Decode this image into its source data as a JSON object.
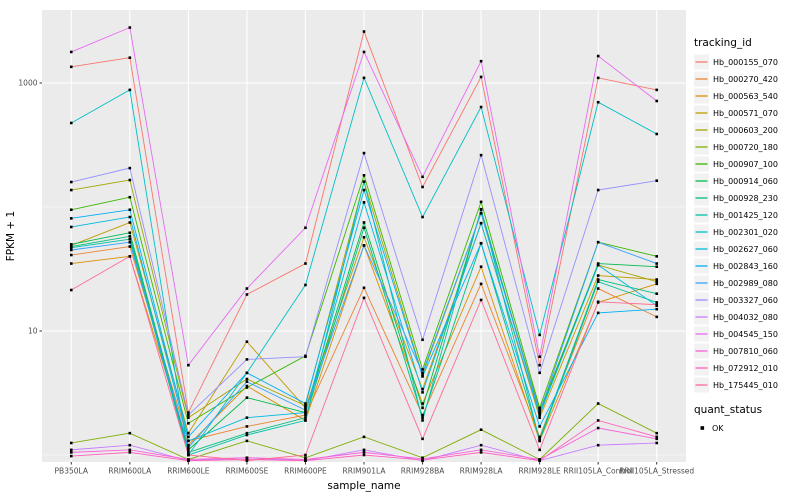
{
  "figure": {
    "y_axis": {
      "label": "FPKM + 1",
      "ticks": [
        {
          "value": 1000,
          "label": "1000"
        },
        {
          "value": 10,
          "label": "10"
        }
      ]
    },
    "x_axis": {
      "label": "sample_name"
    },
    "legend": {
      "tracking_title": "tracking_id",
      "quant_title": "quant_status",
      "quant_ok_label": "OK",
      "quant_ok_symbol": "black-filled-square"
    },
    "colors": {
      "panel_background": "#EBEBEB",
      "gridline": "#FFFFFF",
      "tick_text": "#4D4D4D",
      "point": "#000000",
      "legend_key_background": "#F2F2F2"
    }
  },
  "chart_data": {
    "type": "line",
    "title": "",
    "xlabel": "sample_name",
    "ylabel": "FPKM + 1",
    "yscale": "log10",
    "ylim": [
      0.88,
      3900
    ],
    "yticks": [
      10,
      1000
    ],
    "y_minor_gridlines": [
      1,
      100
    ],
    "grid": true,
    "legend_position": "right",
    "point_shape": "filled-square-black",
    "x": [
      "PB350LA",
      "RRIM600LA",
      "RRIM600LE",
      "RRIM600SE",
      "RRIM600PE",
      "RRIM901LA",
      "RRIM928BA",
      "RRIM928LA",
      "RRIM928LE",
      "RRII105LA_Control",
      "RRII105LA_Stressed"
    ],
    "series": [
      {
        "name": "Hb_000155_070",
        "color": "#F8766D",
        "values": [
          1350,
          1600,
          2.2,
          19.7,
          35,
          2600,
          145,
          1120,
          5.3,
          1100,
          880
        ]
      },
      {
        "name": "Hb_000270_420",
        "color": "#EA8331",
        "values": [
          41,
          48,
          1.3,
          1.7,
          2.1,
          22.3,
          2.1,
          24,
          1.4,
          22,
          13
        ]
      },
      {
        "name": "Hb_000563_540",
        "color": "#D89000",
        "values": [
          35,
          40,
          1.2,
          3.6,
          1.9,
          49,
          2.6,
          33,
          1.3,
          17,
          24
        ]
      },
      {
        "name": "Hb_000571_070",
        "color": "#C09B00",
        "values": [
          49,
          75,
          1.5,
          8.2,
          2.4,
          57,
          3.4,
          74,
          2.0,
          28,
          26
        ]
      },
      {
        "name": "Hb_000603_200",
        "color": "#A3A500",
        "values": [
          137,
          165,
          2.0,
          4.1,
          2.5,
          160,
          4.4,
          89,
          2.3,
          34,
          25
        ]
      },
      {
        "name": "Hb_000720_180",
        "color": "#7CAE00",
        "values": [
          1.25,
          1.5,
          0.92,
          1.3,
          0.95,
          1.4,
          0.95,
          1.6,
          0.92,
          2.6,
          1.5
        ]
      },
      {
        "name": "Hb_000907_100",
        "color": "#39B600",
        "values": [
          95,
          120,
          1.8,
          3.5,
          6.3,
          180,
          4.9,
          110,
          2.4,
          52,
          40
        ]
      },
      {
        "name": "Hb_000914_060",
        "color": "#00BB4E",
        "values": [
          50,
          62,
          1.1,
          2.9,
          2.2,
          75,
          2.4,
          95,
          2.2,
          35,
          33
        ]
      },
      {
        "name": "Hb_000928_230",
        "color": "#00BF7D",
        "values": [
          48,
          58,
          1.05,
          1.5,
          2.0,
          68,
          2.0,
          51,
          1.35,
          26,
          20
        ]
      },
      {
        "name": "Hb_001425_120",
        "color": "#00C1A3",
        "values": [
          47,
          55,
          1.0,
          1.45,
          1.9,
          160,
          1.9,
          96,
          1.3,
          25,
          17
        ]
      },
      {
        "name": "Hb_002301_020",
        "color": "#00BFC4",
        "values": [
          476,
          880,
          1.0,
          4.6,
          23.5,
          1100,
          83,
          640,
          9.3,
          700,
          388
        ]
      },
      {
        "name": "Hb_002627_060",
        "color": "#00BADE",
        "values": [
          69,
          83,
          1.3,
          2.0,
          2.2,
          109,
          3.2,
          74,
          2.1,
          34,
          16
        ]
      },
      {
        "name": "Hb_002843_160",
        "color": "#00B0F6",
        "values": [
          81,
          95,
          1.4,
          4.6,
          2.6,
          137,
          4.3,
          51,
          1.7,
          14,
          15
        ]
      },
      {
        "name": "Hb_002989_080",
        "color": "#35A2FF",
        "values": [
          45,
          52,
          1.15,
          3.9,
          2.3,
          49,
          4.6,
          89,
          2.2,
          52,
          35
        ]
      },
      {
        "name": "Hb_003327_060",
        "color": "#9590FF",
        "values": [
          159,
          206,
          2.1,
          5.9,
          6.2,
          272,
          8.5,
          262,
          4.6,
          137,
          163
        ]
      },
      {
        "name": "Hb_004032_080",
        "color": "#C77CFF",
        "values": [
          1.1,
          1.2,
          0.9,
          0.95,
          0.9,
          1.1,
          0.9,
          1.2,
          0.9,
          1.2,
          1.25
        ]
      },
      {
        "name": "Hb_004545_150",
        "color": "#E76BF3",
        "values": [
          1780,
          2800,
          5.3,
          22,
          68,
          1780,
          175,
          1500,
          6.2,
          1650,
          716
        ]
      },
      {
        "name": "Hb_007810_060",
        "color": "#FA62DB",
        "values": [
          1.05,
          1.1,
          0.92,
          0.95,
          0.92,
          1.05,
          0.93,
          1.1,
          0.92,
          1.65,
          1.35
        ]
      },
      {
        "name": "Hb_072912_010",
        "color": "#FF62BC",
        "values": [
          0.98,
          1.05,
          0.9,
          0.92,
          0.9,
          1.0,
          0.91,
          1.05,
          0.9,
          1.9,
          1.4
        ]
      },
      {
        "name": "Hb_175445_010",
        "color": "#FF6A98",
        "values": [
          21.4,
          40,
          1.0,
          0.9,
          1.0,
          18.5,
          1.35,
          17.8,
          1.1,
          17.2,
          16.3
        ]
      }
    ]
  }
}
